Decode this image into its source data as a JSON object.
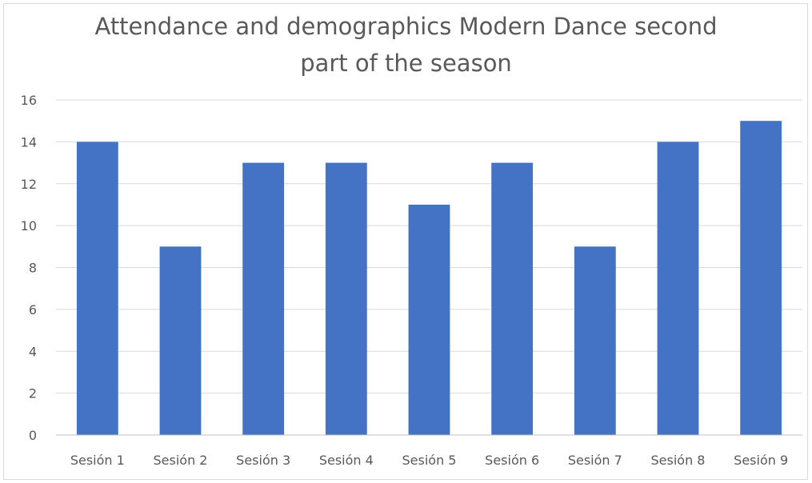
{
  "chart_data": {
    "type": "bar",
    "title_lines": [
      "Attendance and demographics Modern Dance second",
      "part of the season"
    ],
    "categories": [
      "Sesión 1",
      "Sesión 2",
      "Sesión 3",
      "Sesión 4",
      "Sesión 5",
      "Sesión 6",
      "Sesión 7",
      "Sesión 8",
      "Sesión 9"
    ],
    "values": [
      14,
      9,
      13,
      13,
      11,
      13,
      9,
      14,
      15
    ],
    "ylim": [
      0,
      16
    ],
    "yticks": [
      0,
      2,
      4,
      6,
      8,
      10,
      12,
      14,
      16
    ],
    "grid": true,
    "legend": "none",
    "bar_color": "#4472c4",
    "grid_color": "#d9d9d9",
    "axis_color": "#bfbfbf",
    "text_color": "#595959"
  }
}
